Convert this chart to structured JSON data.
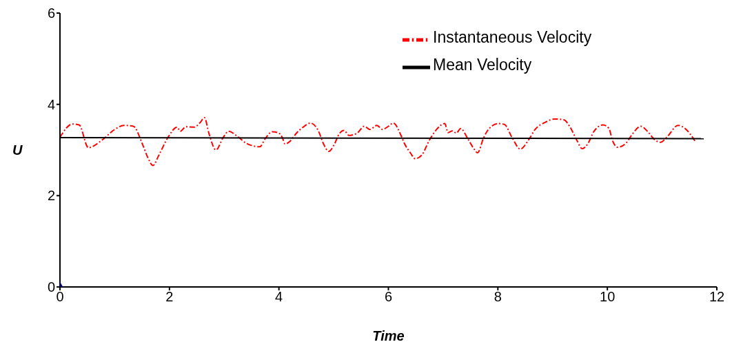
{
  "chart_data": {
    "type": "line",
    "xlabel": "Time",
    "ylabel": "U",
    "xlim": [
      0,
      12
    ],
    "xticks": [
      0,
      2,
      4,
      6,
      8,
      10,
      12
    ],
    "ylim": [
      0,
      6
    ],
    "yticks": [
      0,
      2,
      4,
      6
    ],
    "grid": false,
    "legend": "top right",
    "series": [
      {
        "name": "Instantaneous Velocity",
        "color": "#ff0000",
        "line_style": "dashed",
        "marker": "none",
        "x": [
          0,
          0.23,
          0.35,
          0.52,
          0.77,
          1.0,
          1.17,
          1.34,
          1.51,
          1.61,
          1.7,
          1.8,
          1.97,
          2.14,
          2.2,
          2.3,
          2.45,
          2.56,
          2.64,
          2.72,
          2.85,
          2.98,
          3.08,
          3.23,
          3.4,
          3.5,
          3.65,
          3.75,
          3.88,
          4.0,
          4.07,
          4.11,
          4.21,
          4.32,
          4.44,
          4.58,
          4.72,
          4.82,
          4.91,
          5.01,
          5.1,
          5.19,
          5.28,
          5.43,
          5.56,
          5.66,
          5.79,
          5.89,
          6.0,
          6.09,
          6.23,
          6.29,
          6.4,
          6.49,
          6.61,
          6.75,
          6.88,
          7.03,
          7.09,
          7.17,
          7.24,
          7.32,
          7.45,
          7.55,
          7.63,
          7.74,
          7.84,
          8.01,
          8.12,
          8.26,
          8.41,
          8.56,
          8.68,
          8.87,
          9.04,
          9.21,
          9.31,
          9.44,
          9.54,
          9.65,
          9.75,
          9.92,
          10.03,
          10.09,
          10.19,
          10.34,
          10.47,
          10.61,
          10.74,
          10.87,
          10.97,
          11.1,
          11.29,
          11.43,
          11.6
        ],
        "values": [
          3.28,
          3.57,
          3.55,
          3.05,
          3.22,
          3.45,
          3.54,
          3.52,
          3.12,
          2.82,
          2.66,
          2.87,
          3.27,
          3.5,
          3.41,
          3.51,
          3.5,
          3.6,
          3.71,
          3.37,
          3.0,
          3.27,
          3.41,
          3.31,
          3.15,
          3.1,
          3.07,
          3.25,
          3.4,
          3.37,
          3.25,
          3.13,
          3.2,
          3.37,
          3.5,
          3.59,
          3.42,
          3.12,
          2.97,
          3.12,
          3.35,
          3.43,
          3.32,
          3.37,
          3.52,
          3.45,
          3.54,
          3.45,
          3.52,
          3.59,
          3.32,
          3.15,
          2.94,
          2.81,
          2.89,
          3.22,
          3.45,
          3.58,
          3.38,
          3.42,
          3.37,
          3.47,
          3.25,
          3.05,
          2.94,
          3.27,
          3.47,
          3.58,
          3.56,
          3.27,
          3.02,
          3.22,
          3.45,
          3.61,
          3.68,
          3.66,
          3.52,
          3.22,
          3.03,
          3.15,
          3.4,
          3.55,
          3.47,
          3.22,
          3.06,
          3.15,
          3.37,
          3.52,
          3.4,
          3.22,
          3.17,
          3.3,
          3.54,
          3.46,
          3.2
        ]
      },
      {
        "name": "Mean Velocity",
        "color": "#000000",
        "line_style": "solid",
        "marker": "none",
        "x": [
          0,
          11.76
        ],
        "values": [
          3.27,
          3.25
        ]
      },
      {
        "type": "scatter",
        "color": "#000080",
        "marker": "diamond",
        "x": [
          0
        ],
        "values": [
          0
        ]
      }
    ]
  }
}
